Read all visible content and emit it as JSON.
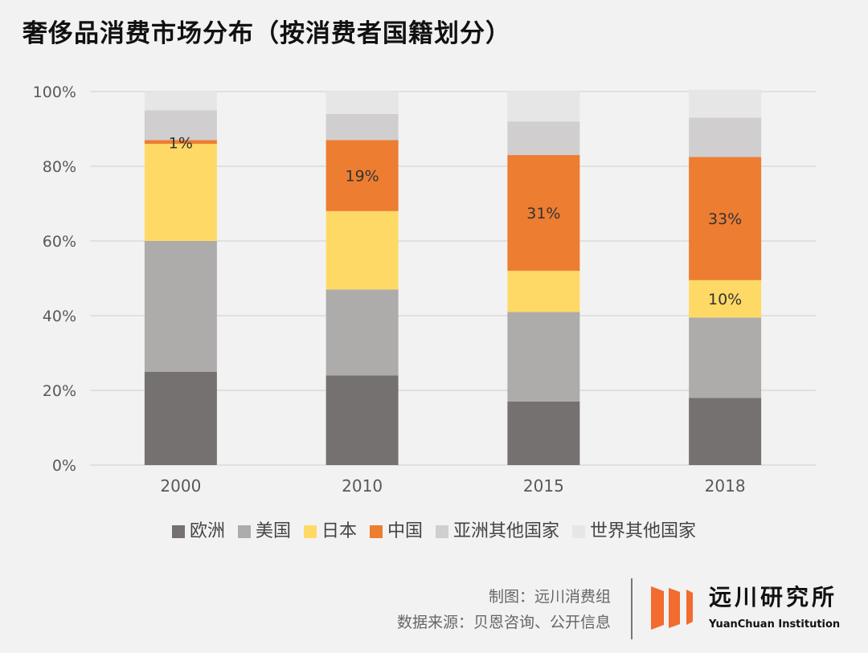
{
  "title": "奢侈品消费市场分布（按消费者国籍划分）",
  "chart_data": {
    "type": "bar",
    "stacked": true,
    "title": "奢侈品消费市场分布（按消费者国籍划分）",
    "categories": [
      "2000",
      "2010",
      "2015",
      "2018"
    ],
    "ylim": [
      0,
      100
    ],
    "yticks": [
      "0%",
      "20%",
      "40%",
      "60%",
      "80%",
      "100%"
    ],
    "grid": true,
    "legend_position": "bottom",
    "series": [
      {
        "name": "欧洲",
        "color": "#757171",
        "values": [
          25,
          24,
          17,
          18
        ]
      },
      {
        "name": "美国",
        "color": "#aeabab",
        "values": [
          35,
          23,
          24,
          21.5
        ]
      },
      {
        "name": "日本",
        "color": "#ffd966",
        "values": [
          26,
          21,
          11,
          10
        ]
      },
      {
        "name": "中国",
        "color": "#ed7d31",
        "values": [
          1,
          19,
          31,
          33
        ]
      },
      {
        "name": "亚洲其他国家",
        "color": "#d0cece",
        "values": [
          8,
          7,
          9,
          10.5
        ]
      },
      {
        "name": "世界其他国家",
        "color": "#e7e6e6",
        "values": [
          5,
          6,
          8,
          7.5
        ]
      }
    ],
    "data_labels": [
      {
        "category": "2000",
        "series": "中国",
        "text": "1%"
      },
      {
        "category": "2010",
        "series": "中国",
        "text": "19%"
      },
      {
        "category": "2015",
        "series": "中国",
        "text": "31%"
      },
      {
        "category": "2018",
        "series": "中国",
        "text": "33%"
      },
      {
        "category": "2018",
        "series": "日本",
        "text": "10%"
      }
    ]
  },
  "footer": {
    "credit": "制图：远川消费组",
    "source": "数据来源：贝恩咨询、公开信息",
    "logo_cn": "远川研究所",
    "logo_en": "YuanChuan Institution",
    "logo_color": "#f26b2f"
  }
}
